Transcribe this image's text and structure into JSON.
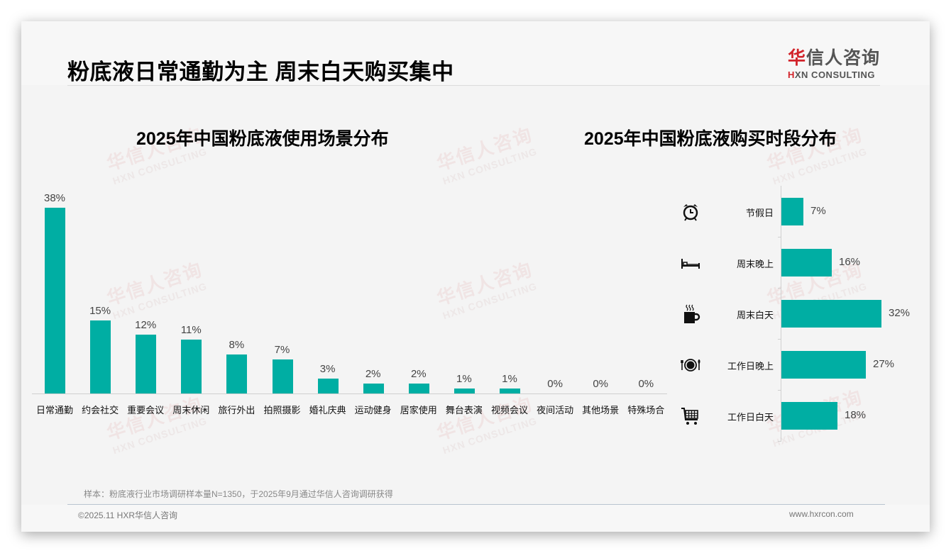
{
  "header": {
    "title": "粉底液日常通勤为主 周末白天购买集中",
    "logo_cn_red": "华",
    "logo_cn_rest": "信人咨询",
    "logo_en_red": "H",
    "logo_en_rest": "XN CONSULTING"
  },
  "watermark": {
    "cn": "华信人咨询",
    "en": "HXN CONSULTING"
  },
  "colors": {
    "bar": "#00aea3",
    "brand_red": "#d2232a",
    "text": "#000000",
    "muted": "#888888"
  },
  "left_chart": {
    "title": "2025年中国粉底液使用场景分布"
  },
  "right_chart": {
    "title": "2025年中国粉底液购买时段分布"
  },
  "chart_data": [
    {
      "type": "bar",
      "title": "2025年中国粉底液使用场景分布",
      "categories": [
        "日常通勤",
        "约会社交",
        "重要会议",
        "周末休闲",
        "旅行外出",
        "拍照摄影",
        "婚礼庆典",
        "运动健身",
        "居家使用",
        "舞台表演",
        "视频会议",
        "夜间活动",
        "其他场景",
        "特殊场合"
      ],
      "values": [
        38,
        15,
        12,
        11,
        8,
        7,
        3,
        2,
        2,
        1,
        1,
        0,
        0,
        0
      ],
      "labels": [
        "38%",
        "15%",
        "12%",
        "11%",
        "8%",
        "7%",
        "3%",
        "2%",
        "2%",
        "1%",
        "1%",
        "0%",
        "0%",
        "0%"
      ],
      "xlabel": "",
      "ylabel": "",
      "ylim": [
        0,
        40
      ],
      "grid": false,
      "legend": "none",
      "unit": "%"
    },
    {
      "type": "bar",
      "orientation": "horizontal",
      "title": "2025年中国粉底液购买时段分布",
      "categories": [
        "节假日",
        "周末晚上",
        "周末白天",
        "工作日晚上",
        "工作日白天"
      ],
      "values": [
        7,
        16,
        32,
        27,
        18
      ],
      "labels": [
        "7%",
        "16%",
        "32%",
        "27%",
        "18%"
      ],
      "icons": [
        "alarm-clock-icon",
        "bed-icon",
        "coffee-cup-icon",
        "plate-cutlery-icon",
        "shopping-cart-icon"
      ],
      "xlabel": "",
      "ylabel": "",
      "xlim": [
        0,
        32
      ],
      "grid": false,
      "legend": "none",
      "unit": "%"
    }
  ],
  "footer": {
    "note": "样本：粉底液行业市场调研样本量N=1350，于2025年9月通过华信人咨询调研获得",
    "copyright": "©2025.11 HXR华信人咨询",
    "site": "www.hxrcon.com"
  }
}
